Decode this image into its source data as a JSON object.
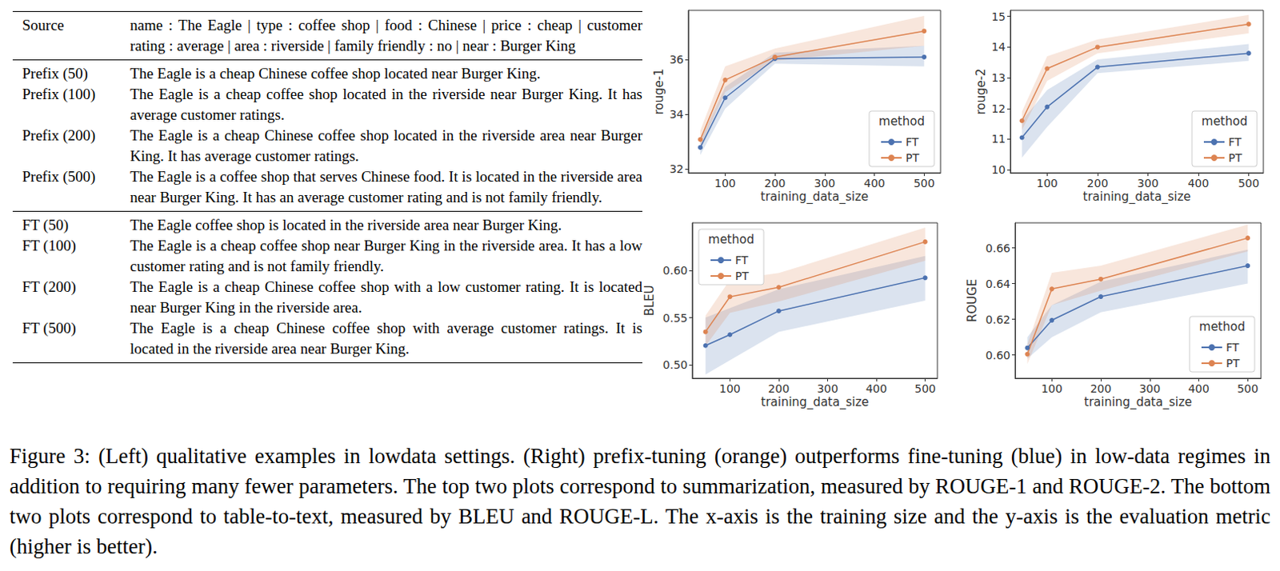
{
  "table": {
    "sections": [
      [
        [
          "Source",
          "name : The Eagle | type : coffee shop | food : Chinese | price : cheap | customer rating : average | area : riverside | family friendly : no | near : Burger King"
        ]
      ],
      [
        [
          "Prefix (50)",
          "The Eagle is a cheap Chinese coffee shop located near Burger King."
        ],
        [
          "Prefix (100)",
          "The Eagle is a cheap coffee shop located in the riverside near Burger King. It has average customer ratings."
        ],
        [
          "Prefix (200)",
          "The Eagle is a cheap Chinese coffee shop located in the riverside area near Burger King. It has average customer ratings."
        ],
        [
          "Prefix (500)",
          "The Eagle is a coffee shop that serves Chinese food. It is located in the riverside area near Burger King. It has an average customer rating and is not family friendly."
        ]
      ],
      [
        [
          "FT (50)",
          "The Eagle coffee shop is located in the riverside area near Burger King."
        ],
        [
          "FT (100)",
          "The Eagle is a cheap coffee shop near Burger King in the riverside area. It has a low customer rating and is not family friendly."
        ],
        [
          "FT (200)",
          "The Eagle is a cheap Chinese coffee shop with a low customer rating. It is located near Burger King in the riverside area."
        ],
        [
          "FT (500)",
          "The Eagle is a cheap Chinese coffee shop with average customer ratings. It is located in the riverside area near Burger King."
        ]
      ]
    ]
  },
  "chart_data": [
    {
      "type": "line",
      "x_label": "training_data_size",
      "y_label": "rouge-1",
      "x": [
        50,
        100,
        200,
        500
      ],
      "xlim": [
        26,
        533
      ],
      "xticks": [
        100,
        200,
        300,
        400,
        500
      ],
      "ylim": [
        31.85,
        37.8
      ],
      "yticks": [
        32,
        34,
        36
      ],
      "grid": false,
      "legend": "lower right",
      "legend_title": "method",
      "marker": "circle",
      "line_style": "solid",
      "series": [
        {
          "name": "FT",
          "color": "#4c72b0",
          "values": [
            32.78,
            34.6,
            36.03,
            36.09
          ],
          "lower": [
            32.5,
            34.2,
            35.85,
            35.75
          ],
          "upper": [
            33.05,
            35.0,
            36.25,
            36.5
          ]
        },
        {
          "name": "PT",
          "color": "#dd8452",
          "values": [
            33.07,
            35.25,
            36.09,
            37.04
          ],
          "lower": [
            32.8,
            34.8,
            35.95,
            36.5
          ],
          "upper": [
            33.4,
            35.75,
            36.4,
            37.6
          ]
        }
      ]
    },
    {
      "type": "line",
      "x_label": "training_data_size",
      "y_label": "rouge-2",
      "x": [
        50,
        100,
        200,
        500
      ],
      "xlim": [
        27,
        529
      ],
      "xticks": [
        100,
        200,
        300,
        400,
        500
      ],
      "ylim": [
        9.9,
        15.2
      ],
      "yticks": [
        10,
        11,
        12,
        13,
        14,
        15
      ],
      "grid": false,
      "legend": "lower right",
      "legend_title": "method",
      "marker": "circle",
      "line_style": "solid",
      "series": [
        {
          "name": "FT",
          "color": "#4c72b0",
          "values": [
            11.05,
            12.05,
            13.35,
            13.8
          ],
          "lower": [
            10.4,
            11.4,
            13.15,
            13.55
          ],
          "upper": [
            11.6,
            12.6,
            13.6,
            14.1
          ]
        },
        {
          "name": "PT",
          "color": "#dd8452",
          "values": [
            11.6,
            13.3,
            14.0,
            14.75
          ],
          "lower": [
            11.3,
            12.9,
            13.8,
            14.45
          ],
          "upper": [
            11.9,
            13.7,
            14.25,
            15.05
          ]
        }
      ]
    },
    {
      "type": "line",
      "x_label": "training_data_size",
      "y_label": "BLEU",
      "x": [
        50,
        100,
        200,
        500
      ],
      "xlim": [
        23,
        525
      ],
      "xticks": [
        100,
        200,
        300,
        400,
        500
      ],
      "ylim": [
        0.486,
        0.65
      ],
      "yticks": [
        {
          "value": 0.5,
          "label": "0.50"
        },
        {
          "value": 0.55,
          "label": "0.55"
        },
        {
          "value": 0.6,
          "label": "0.60"
        }
      ],
      "grid": false,
      "legend": "upper left",
      "legend_title": "method",
      "marker": "circle",
      "line_style": "solid",
      "series": [
        {
          "name": "FT",
          "color": "#4c72b0",
          "values": [
            0.5205,
            0.532,
            0.557,
            0.592
          ],
          "lower": [
            0.49,
            0.505,
            0.535,
            0.568
          ],
          "upper": [
            0.55,
            0.56,
            0.58,
            0.615
          ]
        },
        {
          "name": "PT",
          "color": "#dd8452",
          "values": [
            0.535,
            0.572,
            0.582,
            0.63
          ],
          "lower": [
            0.52,
            0.555,
            0.567,
            0.61
          ],
          "upper": [
            0.552,
            0.59,
            0.597,
            0.645
          ]
        }
      ]
    },
    {
      "type": "line",
      "x_label": "training_data_size",
      "y_label": "ROUGE",
      "x": [
        50,
        100,
        200,
        500
      ],
      "xlim": [
        25,
        527
      ],
      "xticks": [
        100,
        200,
        300,
        400,
        500
      ],
      "ylim": [
        0.587,
        0.674
      ],
      "yticks": [
        {
          "value": 0.6,
          "label": "0.60"
        },
        {
          "value": 0.62,
          "label": "0.62"
        },
        {
          "value": 0.64,
          "label": "0.64"
        },
        {
          "value": 0.66,
          "label": "0.66"
        }
      ],
      "grid": false,
      "legend": "lower right",
      "legend_title": "method",
      "marker": "circle",
      "line_style": "solid",
      "series": [
        {
          "name": "FT",
          "color": "#4c72b0",
          "values": [
            0.604,
            0.6195,
            0.6327,
            0.65
          ],
          "lower": [
            0.598,
            0.61,
            0.624,
            0.64
          ],
          "upper": [
            0.61,
            0.628,
            0.641,
            0.659
          ]
        },
        {
          "name": "PT",
          "color": "#dd8452",
          "values": [
            0.6005,
            0.637,
            0.6425,
            0.6655
          ],
          "lower": [
            0.595,
            0.628,
            0.636,
            0.658
          ],
          "upper": [
            0.606,
            0.646,
            0.65,
            0.673
          ]
        }
      ]
    }
  ],
  "caption": "Figure 3: (Left) qualitative examples in lowdata settings. (Right) prefix-tuning (orange) outperforms fine-tuning (blue) in low-data regimes in addition to requiring many fewer parameters. The top two plots correspond to summarization, measured by ROUGE-1 and ROUGE-2. The bottom two plots correspond to table-to-text, measured by BLEU and ROUGE-L. The x-axis is the training size and the y-axis is the evaluation metric (higher is better)."
}
